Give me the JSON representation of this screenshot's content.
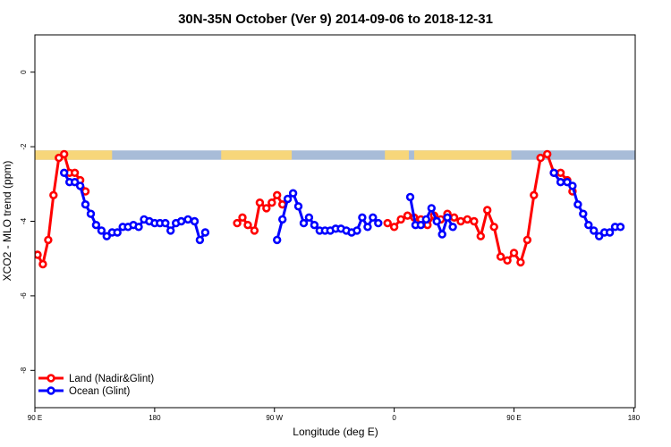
{
  "chart_data": {
    "type": "line",
    "title": "30N-35N October (Ver 9)   2014-09-06 to 2018-12-31",
    "xlabel": "Longitude (deg E)",
    "ylabel": "XCO2 - MLO trend (ppm)",
    "xlim": [
      90,
      450
    ],
    "ylim": [
      -9,
      1
    ],
    "x_ticks": [
      {
        "value": 90,
        "label": "90 E"
      },
      {
        "value": 180,
        "label": "180"
      },
      {
        "value": 270,
        "label": "90 W"
      },
      {
        "value": 360,
        "label": "0"
      },
      {
        "value": 450,
        "label": "90 E"
      },
      {
        "value": 540,
        "label": "180"
      }
    ],
    "y_ticks": [
      {
        "value": 0,
        "label": "0"
      },
      {
        "value": -2,
        "label": "-2"
      },
      {
        "value": -4,
        "label": "-4"
      },
      {
        "value": -6,
        "label": "-6"
      },
      {
        "value": -8,
        "label": "-8"
      }
    ],
    "grid": false,
    "legend_position": "bottom-left",
    "landmask": {
      "y_range": [
        -2.35,
        -2.1
      ],
      "ocean_color": "#a8bcd8",
      "land_color": "#f7d67a",
      "land_segments": [
        [
          90,
          148
        ],
        [
          230,
          283
        ],
        [
          353,
          371
        ],
        [
          375,
          448
        ]
      ]
    },
    "series": [
      {
        "name": "Land (Nadir&Glint)",
        "color": "#ff0000",
        "points": [
          [
            92,
            -4.9
          ],
          [
            96,
            -5.15
          ],
          [
            100,
            -4.5
          ],
          [
            104,
            -3.3
          ],
          [
            108,
            -2.3
          ],
          [
            112,
            -2.2
          ],
          [
            116,
            -2.7
          ],
          [
            120,
            -2.7
          ],
          [
            124,
            -2.9
          ],
          [
            128,
            -3.2
          ],
          null,
          [
            242,
            -4.05
          ],
          [
            246,
            -3.9
          ],
          [
            250,
            -4.1
          ],
          [
            255,
            -4.25
          ],
          [
            259,
            -3.5
          ],
          [
            264,
            -3.65
          ],
          [
            268,
            -3.5
          ],
          [
            272,
            -3.3
          ],
          [
            276,
            -3.55
          ],
          null,
          [
            355,
            -4.05
          ],
          [
            360,
            -4.15
          ],
          [
            365,
            -3.95
          ],
          [
            370,
            -3.85
          ],
          [
            375,
            -3.9
          ],
          [
            380,
            -3.95
          ],
          [
            385,
            -4.1
          ],
          [
            390,
            -3.85
          ],
          [
            395,
            -3.95
          ],
          [
            400,
            -3.8
          ],
          [
            405,
            -3.9
          ],
          [
            410,
            -4.0
          ],
          [
            415,
            -3.95
          ],
          [
            420,
            -4.0
          ],
          [
            425,
            -4.4
          ],
          [
            430,
            -3.7
          ],
          [
            435,
            -4.15
          ],
          [
            440,
            -4.95
          ],
          [
            445,
            -5.05
          ],
          [
            450,
            -4.85
          ],
          [
            455,
            -5.1
          ],
          [
            460,
            -4.5
          ],
          [
            465,
            -3.3
          ],
          [
            470,
            -2.3
          ],
          [
            475,
            -2.2
          ],
          [
            480,
            -2.7
          ],
          [
            485,
            -2.7
          ],
          [
            490,
            -2.9
          ],
          [
            494,
            -3.2
          ]
        ]
      },
      {
        "name": "Ocean (Glint)",
        "color": "#0000ff",
        "points": [
          [
            112,
            -2.7
          ],
          [
            116,
            -2.95
          ],
          [
            120,
            -2.95
          ],
          [
            124,
            -3.05
          ],
          [
            128,
            -3.55
          ],
          [
            132,
            -3.8
          ],
          [
            136,
            -4.1
          ],
          [
            140,
            -4.25
          ],
          [
            144,
            -4.4
          ],
          [
            148,
            -4.3
          ],
          [
            152,
            -4.3
          ],
          [
            156,
            -4.15
          ],
          [
            160,
            -4.15
          ],
          [
            164,
            -4.1
          ],
          [
            168,
            -4.15
          ],
          [
            172,
            -3.95
          ],
          [
            176,
            -4.0
          ],
          [
            180,
            -4.05
          ],
          [
            184,
            -4.05
          ],
          [
            188,
            -4.05
          ],
          [
            192,
            -4.25
          ],
          [
            196,
            -4.05
          ],
          [
            200,
            -4.0
          ],
          [
            205,
            -3.95
          ],
          [
            210,
            -4.0
          ],
          [
            214,
            -4.5
          ],
          [
            218,
            -4.3
          ],
          null,
          [
            272,
            -4.5
          ],
          [
            276,
            -3.95
          ],
          [
            280,
            -3.4
          ],
          [
            284,
            -3.25
          ],
          [
            288,
            -3.6
          ],
          [
            292,
            -4.05
          ],
          [
            296,
            -3.9
          ],
          [
            300,
            -4.1
          ],
          [
            304,
            -4.25
          ],
          [
            308,
            -4.25
          ],
          [
            312,
            -4.25
          ],
          [
            316,
            -4.2
          ],
          [
            320,
            -4.2
          ],
          [
            324,
            -4.25
          ],
          [
            328,
            -4.3
          ],
          [
            332,
            -4.25
          ],
          [
            336,
            -3.9
          ],
          [
            340,
            -4.15
          ],
          [
            344,
            -3.9
          ],
          [
            348,
            -4.05
          ],
          null,
          [
            372,
            -3.35
          ],
          [
            376,
            -4.1
          ],
          [
            380,
            -4.1
          ],
          [
            384,
            -3.95
          ],
          [
            388,
            -3.65
          ],
          [
            392,
            -4.0
          ],
          [
            396,
            -4.35
          ],
          [
            400,
            -3.9
          ],
          [
            404,
            -4.15
          ],
          null,
          [
            480,
            -2.7
          ],
          [
            485,
            -2.95
          ],
          [
            490,
            -2.95
          ],
          [
            494,
            -3.05
          ],
          [
            498,
            -3.55
          ],
          [
            502,
            -3.8
          ],
          [
            506,
            -4.1
          ],
          [
            510,
            -4.25
          ],
          [
            514,
            -4.4
          ],
          [
            518,
            -4.3
          ],
          [
            522,
            -4.3
          ],
          [
            526,
            -4.15
          ],
          [
            530,
            -4.15
          ]
        ]
      }
    ]
  }
}
